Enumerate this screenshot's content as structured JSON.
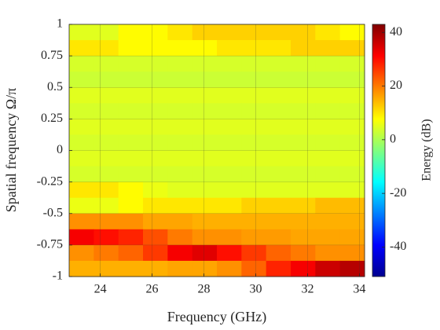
{
  "chart_data": {
    "type": "heatmap",
    "xlabel": "Frequency (GHz)",
    "ylabel": "Spatial frequency Ω/π",
    "colorbar_label": "Energy (dB)",
    "x": [
      23.275,
      24.225,
      25.175,
      26.125,
      27.075,
      28.025,
      28.975,
      29.925,
      30.875,
      31.825,
      32.775,
      33.725
    ],
    "y": [
      0.9375,
      0.8125,
      0.6875,
      0.5625,
      0.4375,
      0.3125,
      0.1875,
      0.0625,
      -0.0625,
      -0.1875,
      -0.3125,
      -0.4375,
      -0.5625,
      -0.6875,
      -0.8125,
      -0.9375
    ],
    "z": [
      [
        5,
        5,
        8,
        8,
        10,
        12,
        12,
        12,
        12,
        12,
        10,
        8
      ],
      [
        10,
        10,
        8,
        8,
        8,
        8,
        10,
        10,
        10,
        12,
        12,
        12
      ],
      [
        4,
        4,
        4,
        4,
        4,
        4,
        4,
        4,
        4,
        4,
        4,
        4
      ],
      [
        3,
        3,
        3,
        3,
        3,
        3,
        3,
        3,
        3,
        3,
        3,
        3
      ],
      [
        5,
        5,
        5,
        5,
        5,
        5,
        5,
        5,
        5,
        5,
        5,
        5
      ],
      [
        4,
        4,
        4,
        4,
        4,
        4,
        4,
        4,
        4,
        4,
        4,
        4
      ],
      [
        5,
        5,
        5,
        5,
        5,
        5,
        5,
        5,
        5,
        5,
        5,
        5
      ],
      [
        4,
        4,
        4,
        4,
        4,
        4,
        4,
        4,
        4,
        4,
        4,
        4
      ],
      [
        5,
        5,
        5,
        5,
        5,
        5,
        5,
        5,
        5,
        5,
        5,
        5
      ],
      [
        4,
        4,
        4,
        4,
        4,
        4,
        4,
        4,
        4,
        4,
        4,
        4
      ],
      [
        10,
        10,
        8,
        6,
        5,
        5,
        5,
        5,
        5,
        5,
        5,
        5
      ],
      [
        6,
        6,
        8,
        10,
        10,
        10,
        10,
        12,
        12,
        12,
        14,
        14
      ],
      [
        18,
        18,
        18,
        16,
        16,
        15,
        15,
        15,
        15,
        15,
        15,
        15
      ],
      [
        32,
        30,
        28,
        24,
        20,
        18,
        18,
        17,
        17,
        16,
        16,
        16
      ],
      [
        18,
        20,
        22,
        26,
        32,
        34,
        30,
        26,
        22,
        20,
        18,
        18
      ],
      [
        15,
        15,
        15,
        15,
        16,
        16,
        18,
        22,
        28,
        32,
        36,
        38
      ]
    ],
    "xlim": [
      22.8,
      34.2
    ],
    "xticks": [
      24,
      26,
      28,
      30,
      32,
      34
    ],
    "ylim": [
      -1,
      1
    ],
    "yticks": [
      1,
      0.75,
      0.5,
      0.25,
      0,
      -0.25,
      -0.5,
      -0.75,
      -1
    ],
    "clim": [
      -51,
      43
    ],
    "cticks": [
      40,
      20,
      0,
      -20,
      -40
    ],
    "colormap": "jet",
    "grid": true
  }
}
